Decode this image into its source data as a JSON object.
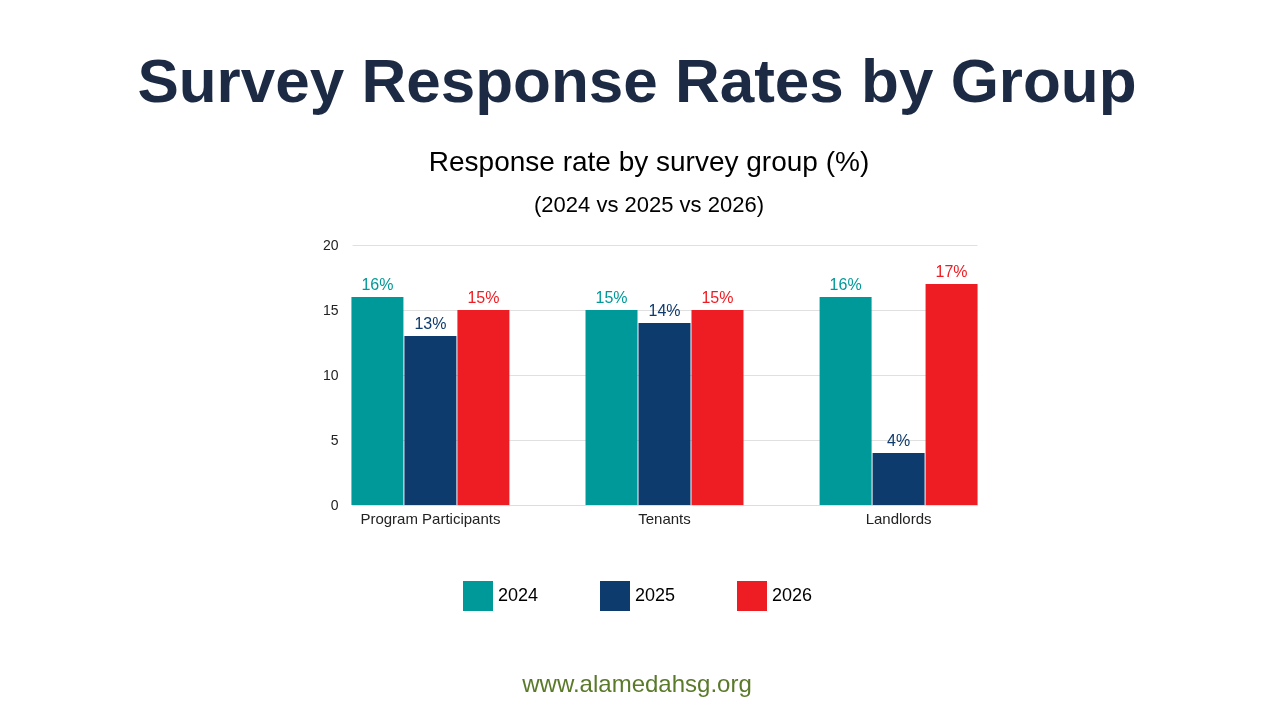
{
  "chart_data": {
    "type": "bar",
    "title": "Survey Response Rates by Group",
    "subtitle": "Response rate by survey group (%)",
    "annotations": [
      "(2024 vs 2025 vs 2026)",
      "www.alamedahsg.org"
    ],
    "categories": [
      "Program Participants",
      "Tenants",
      "Landlords"
    ],
    "series": [
      {
        "name": "2024",
        "color": "#009999",
        "values": [
          16,
          15,
          16
        ],
        "value_labels": [
          "16%",
          "15%",
          "16%"
        ]
      },
      {
        "name": "2025",
        "color": "#0d3b6e",
        "values": [
          13,
          14,
          4
        ],
        "value_labels": [
          "13%",
          "14%",
          "4%"
        ]
      },
      {
        "name": "2026",
        "color": "#ee1d23",
        "values": [
          15,
          15,
          17
        ],
        "value_labels": [
          "15%",
          "15%",
          "17%"
        ]
      }
    ],
    "ylim": [
      0,
      20
    ],
    "yticks": [
      0,
      5,
      10,
      15,
      20
    ],
    "grid": "y",
    "legend": "bottom"
  }
}
